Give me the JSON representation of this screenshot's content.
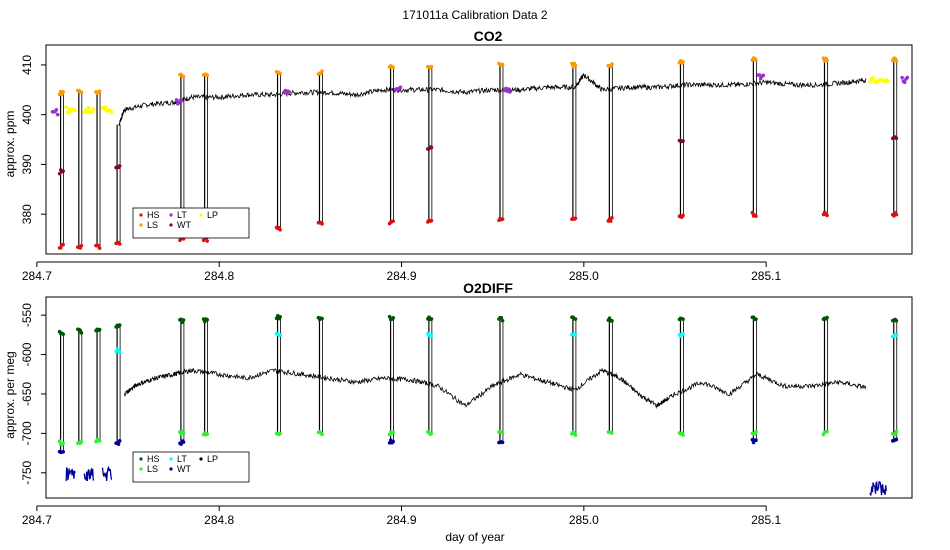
{
  "page": {
    "supertitle": "171011a   Calibration Data 2",
    "xlabel": "day of year"
  },
  "legend_colors": {
    "HS": "#dd1111",
    "LS": "#ff9900",
    "LT": "#9933cc",
    "WT": "#7a0a2a",
    "LP": "#ffff00"
  },
  "legend_colors_o2": {
    "HS": "#005500",
    "LS": "#33ee33",
    "LT": "#00ffff",
    "WT": "#000099",
    "LP": "#000000"
  },
  "chart_data": [
    {
      "type": "line",
      "title": "CO2",
      "xlabel": "",
      "ylabel": "approx. ppm",
      "xlim": [
        284.705,
        285.18
      ],
      "ylim": [
        372,
        414
      ],
      "xticks": [
        284.7,
        284.8,
        284.9,
        285.0,
        285.1
      ],
      "xtick_labels": [
        "284.7",
        "284.8",
        "284.9",
        "285.0",
        "285.1"
      ],
      "yticks": [
        380,
        390,
        400,
        410
      ],
      "ytick_labels": [
        "380",
        "390",
        "400",
        "410"
      ],
      "legend": {
        "entries": [
          "HS",
          "LS",
          "LT",
          "WT",
          "LP"
        ],
        "position": "bottom-left"
      },
      "trace": [
        [
          284.745,
          398
        ],
        [
          284.748,
          401
        ],
        [
          284.76,
          402
        ],
        [
          284.775,
          402.5
        ],
        [
          284.785,
          403.5
        ],
        [
          284.8,
          403.5
        ],
        [
          284.815,
          404
        ],
        [
          284.83,
          404
        ],
        [
          284.845,
          404.5
        ],
        [
          284.86,
          404.5
        ],
        [
          284.875,
          404
        ],
        [
          284.89,
          405
        ],
        [
          284.905,
          405
        ],
        [
          284.92,
          405
        ],
        [
          284.935,
          404.5
        ],
        [
          284.95,
          405
        ],
        [
          284.965,
          405
        ],
        [
          284.98,
          405.5
        ],
        [
          284.995,
          405.5
        ],
        [
          285.0,
          408
        ],
        [
          285.01,
          405
        ],
        [
          285.025,
          405.5
        ],
        [
          285.04,
          405.5
        ],
        [
          285.055,
          406
        ],
        [
          285.07,
          406
        ],
        [
          285.085,
          406
        ],
        [
          285.1,
          406.5
        ],
        [
          285.115,
          406
        ],
        [
          285.13,
          406
        ],
        [
          285.145,
          406.5
        ],
        [
          285.155,
          407
        ]
      ],
      "calibrations": [
        {
          "x": 284.713,
          "HS": 373.5,
          "LS": 404.5,
          "WT": 388.5
        },
        {
          "x": 284.723,
          "HS": 373.5,
          "LS": 404.5
        },
        {
          "x": 284.733,
          "HS": 373.5,
          "LS": 404.5
        },
        {
          "x": 284.744,
          "HS": 374,
          "WT": 389.5
        },
        {
          "x": 284.779,
          "HS": 375,
          "LS": 408
        },
        {
          "x": 284.792,
          "HS": 375,
          "LS": 408
        },
        {
          "x": 284.832,
          "HS": 377,
          "LS": 408.5
        },
        {
          "x": 284.855,
          "HS": 378,
          "LS": 408.5
        },
        {
          "x": 284.894,
          "HS": 378.5,
          "LS": 409.5
        },
        {
          "x": 284.915,
          "HS": 378.5,
          "LS": 409.5,
          "WT": 393.5
        },
        {
          "x": 284.954,
          "HS": 379,
          "LS": 410
        },
        {
          "x": 284.994,
          "HS": 379,
          "LS": 410
        },
        {
          "x": 285.014,
          "HS": 379,
          "LS": 410
        },
        {
          "x": 285.053,
          "HS": 379.5,
          "LS": 410.5,
          "WT": 394.5
        },
        {
          "x": 285.093,
          "HS": 380,
          "LS": 411
        },
        {
          "x": 285.132,
          "HS": 380,
          "LS": 411
        },
        {
          "x": 285.17,
          "HS": 380,
          "LS": 411,
          "WT": 395.5
        }
      ],
      "lt_points": [
        [
          284.71,
          400.5
        ],
        [
          284.778,
          402.5
        ],
        [
          284.837,
          404.5
        ],
        [
          284.898,
          405
        ],
        [
          284.958,
          405
        ],
        [
          285.097,
          407.5
        ],
        [
          285.176,
          407
        ]
      ],
      "lp_blocks": [
        {
          "x0": 284.716,
          "x1": 284.721,
          "y": 401
        },
        {
          "x0": 284.726,
          "x1": 284.731,
          "y": 401
        },
        {
          "x0": 284.736,
          "x1": 284.741,
          "y": 401
        },
        {
          "x0": 285.157,
          "x1": 285.167,
          "y": 407
        }
      ]
    },
    {
      "type": "line",
      "title": "O2DIFF",
      "xlabel": "day of year",
      "ylabel": "approx. per meg",
      "xlim": [
        284.705,
        285.18
      ],
      "ylim": [
        -782,
        -527
      ],
      "xticks": [
        284.7,
        284.8,
        284.9,
        285.0,
        285.1
      ],
      "xtick_labels": [
        "284.7",
        "284.8",
        "284.9",
        "285.0",
        "285.1"
      ],
      "yticks": [
        -750,
        -700,
        -650,
        -600,
        -550
      ],
      "ytick_labels": [
        "-750",
        "-700",
        "-650",
        "-600",
        "-550"
      ],
      "legend": {
        "entries": [
          "HS",
          "LS",
          "LT",
          "WT",
          "LP"
        ],
        "position": "bottom-left"
      },
      "trace": [
        [
          284.748,
          -650
        ],
        [
          284.755,
          -638
        ],
        [
          284.765,
          -630
        ],
        [
          284.775,
          -625
        ],
        [
          284.785,
          -620
        ],
        [
          284.8,
          -625
        ],
        [
          284.815,
          -630
        ],
        [
          284.83,
          -620
        ],
        [
          284.845,
          -625
        ],
        [
          284.86,
          -630
        ],
        [
          284.875,
          -635
        ],
        [
          284.89,
          -630
        ],
        [
          284.905,
          -632
        ],
        [
          284.92,
          -640
        ],
        [
          284.935,
          -665
        ],
        [
          284.95,
          -640
        ],
        [
          284.965,
          -625
        ],
        [
          284.98,
          -635
        ],
        [
          284.995,
          -645
        ],
        [
          285.01,
          -620
        ],
        [
          285.02,
          -630
        ],
        [
          285.03,
          -650
        ],
        [
          285.04,
          -665
        ],
        [
          285.05,
          -650
        ],
        [
          285.065,
          -635
        ],
        [
          285.08,
          -650
        ],
        [
          285.095,
          -625
        ],
        [
          285.11,
          -640
        ],
        [
          285.125,
          -640
        ],
        [
          285.14,
          -635
        ],
        [
          285.155,
          -642
        ]
      ],
      "calibrations": [
        {
          "x": 284.713,
          "HS": -572,
          "LS": -712,
          "WT": -722
        },
        {
          "x": 284.723,
          "HS": -570,
          "LS": -710
        },
        {
          "x": 284.733,
          "HS": -568,
          "LS": -708
        },
        {
          "x": 284.744,
          "HS": -565,
          "LT": -595,
          "WT": -712
        },
        {
          "x": 284.779,
          "HS": -557,
          "LS": -700,
          "WT": -712
        },
        {
          "x": 284.792,
          "HS": -557,
          "LS": -700
        },
        {
          "x": 284.832,
          "HS": -553,
          "LS": -700,
          "LT": -575
        },
        {
          "x": 284.855,
          "HS": -553,
          "LS": -700
        },
        {
          "x": 284.894,
          "HS": -553,
          "LS": -700,
          "WT": -710
        },
        {
          "x": 284.915,
          "HS": -555,
          "LS": -700,
          "LT": -575
        },
        {
          "x": 284.954,
          "HS": -555,
          "LS": -700,
          "WT": -710
        },
        {
          "x": 284.994,
          "HS": -555,
          "LS": -700,
          "LT": -575
        },
        {
          "x": 285.014,
          "HS": -555,
          "LS": -700
        },
        {
          "x": 285.053,
          "HS": -555,
          "LS": -700,
          "LT": -575
        },
        {
          "x": 285.093,
          "HS": -555,
          "LS": -700,
          "WT": -710
        },
        {
          "x": 285.132,
          "HS": -555,
          "LS": -700
        },
        {
          "x": 285.17,
          "HS": -555,
          "LS": -700,
          "LT": -575,
          "WT": -710
        }
      ],
      "wt_blocks": [
        {
          "x0": 284.716,
          "x1": 284.721,
          "y": -752
        },
        {
          "x0": 284.726,
          "x1": 284.731,
          "y": -752
        },
        {
          "x0": 284.736,
          "x1": 284.741,
          "y": -752
        },
        {
          "x0": 285.157,
          "x1": 285.166,
          "y": -770
        }
      ]
    }
  ]
}
